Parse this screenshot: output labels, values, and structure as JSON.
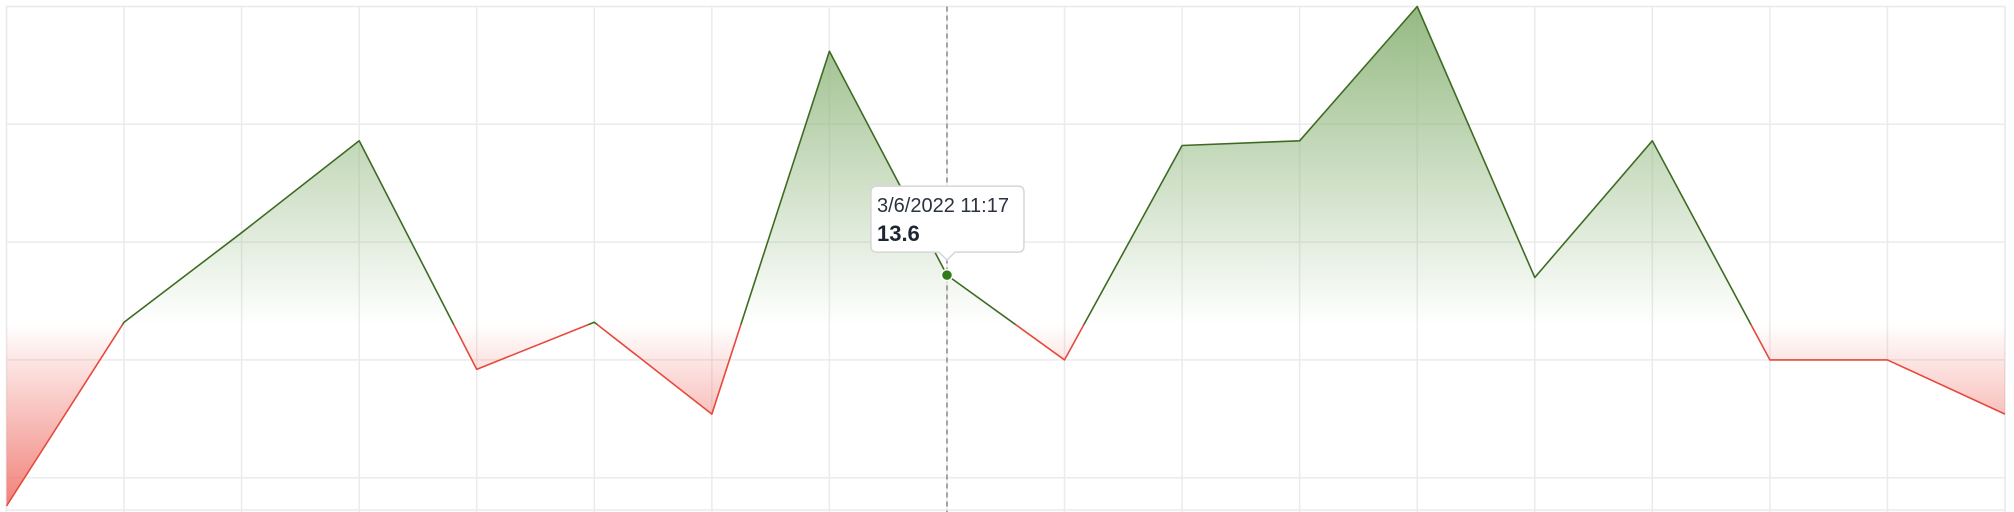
{
  "chart_data": {
    "type": "area",
    "categories": [
      null,
      null,
      null,
      null,
      null,
      null,
      null,
      null,
      "3/6/2022 11:17",
      null,
      null,
      null,
      null,
      null,
      null,
      null,
      null,
      null
    ],
    "values": [
      3.8,
      11.6,
      15.4,
      19.3,
      9.6,
      11.6,
      7.7,
      23.1,
      13.6,
      10.0,
      19.1,
      19.3,
      25,
      13.5,
      19.3,
      10.0,
      10.0,
      7.7
    ],
    "ylim": [
      3.8,
      25
    ],
    "yticks": [
      5,
      10,
      15,
      20,
      25
    ],
    "grid": true,
    "threshold": 11.5,
    "color_above": "#3d6b22",
    "color_below": "#e5493c",
    "fill_above": "#8fb67c",
    "fill_below": "#ef6b62",
    "marker_color": "#2e7d1a"
  }
}
